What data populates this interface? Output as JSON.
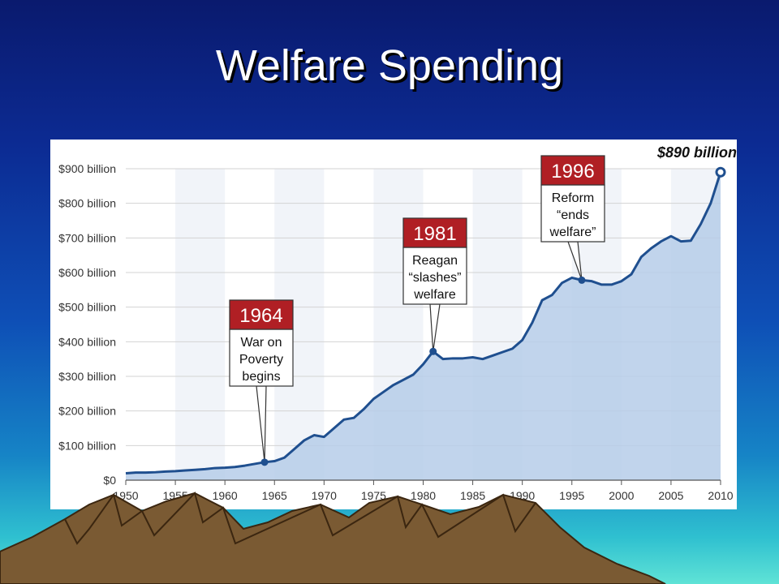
{
  "slide": {
    "title": "Welfare Spending"
  },
  "colors": {
    "line": "#1f4f8f",
    "area": "#b6cde9",
    "callout_header": "#b01f24",
    "grid": "#d3d3d3",
    "mountain": "#7a5a33"
  },
  "chart_data": {
    "type": "area",
    "title": "",
    "xlabel": "",
    "ylabel": "",
    "xlim": [
      1950,
      2010
    ],
    "ylim": [
      0,
      900
    ],
    "x_ticks": [
      "1950",
      "1955",
      "1960",
      "1965",
      "1970",
      "1975",
      "1980",
      "1985",
      "1990",
      "1995",
      "2000",
      "2005",
      "2010"
    ],
    "y_ticks": [
      "$0",
      "$100 billion",
      "$200 billion",
      "$300 billion",
      "$400 billion",
      "$500 billion",
      "$600 billion",
      "$700 billion",
      "$800 billion",
      "$900 billion"
    ],
    "grid": true,
    "series": [
      {
        "x": [
          1950,
          1951,
          1952,
          1953,
          1954,
          1955,
          1956,
          1957,
          1958,
          1959,
          1960,
          1961,
          1962,
          1963,
          1964,
          1965,
          1966,
          1967,
          1968,
          1969,
          1970,
          1971,
          1972,
          1973,
          1974,
          1975,
          1976,
          1977,
          1978,
          1979,
          1980,
          1981,
          1982,
          1983,
          1984,
          1985,
          1986,
          1987,
          1988,
          1989,
          1990,
          1991,
          1992,
          1993,
          1994,
          1995,
          1996,
          1997,
          1998,
          1999,
          2000,
          2001,
          2002,
          2003,
          2004,
          2005,
          2006,
          2007,
          2008,
          2009,
          2010
        ],
        "values": [
          20,
          22,
          22,
          23,
          25,
          26,
          28,
          30,
          32,
          35,
          36,
          38,
          42,
          47,
          52,
          55,
          65,
          90,
          115,
          130,
          125,
          150,
          175,
          180,
          205,
          235,
          255,
          275,
          290,
          305,
          335,
          372,
          350,
          352,
          352,
          355,
          350,
          360,
          370,
          380,
          405,
          455,
          520,
          535,
          570,
          585,
          578,
          575,
          565,
          565,
          575,
          595,
          645,
          670,
          690,
          705,
          690,
          692,
          740,
          800,
          890
        ]
      }
    ],
    "annotations": [
      {
        "year": "1964",
        "text": [
          "War on",
          "Poverty",
          "begins"
        ],
        "x": 1964,
        "y": 52
      },
      {
        "year": "1981",
        "text": [
          "Reagan",
          "“slashes”",
          "welfare"
        ],
        "x": 1981,
        "y": 372
      },
      {
        "year": "1996",
        "text": [
          "Reform",
          "“ends",
          "welfare”"
        ],
        "x": 1996,
        "y": 578
      }
    ],
    "end_label": {
      "text": "$890 billion",
      "x": 2010,
      "y": 890
    }
  }
}
